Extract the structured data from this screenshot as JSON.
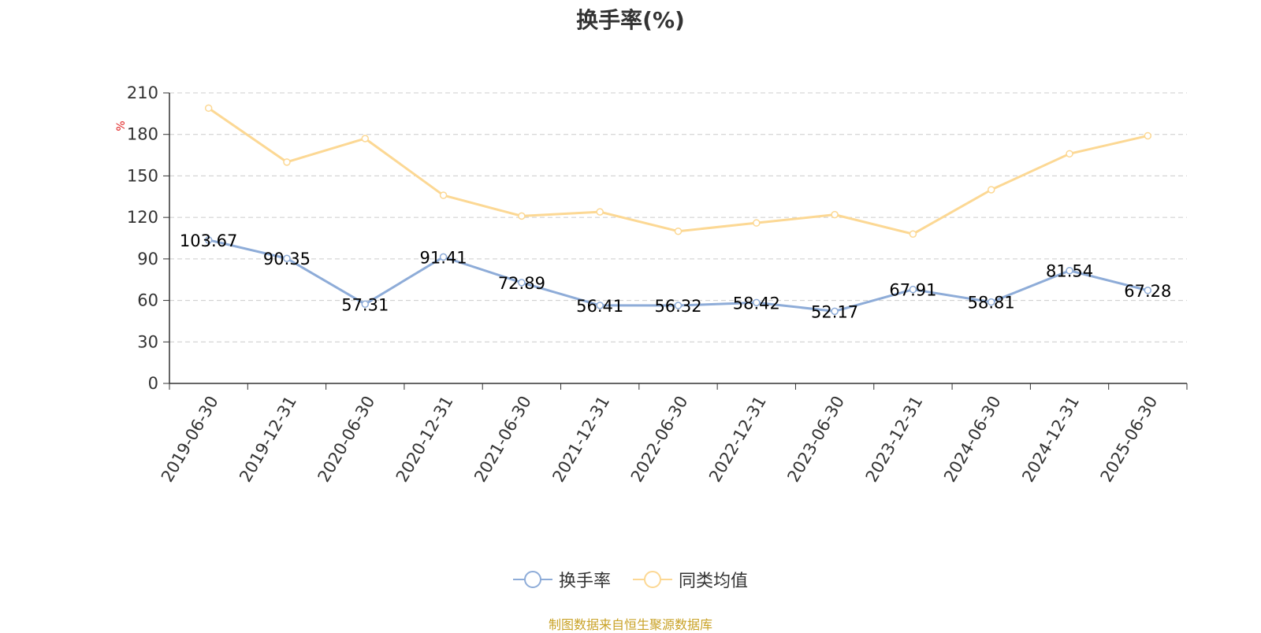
{
  "chart_data": {
    "type": "line",
    "title": "换手率(%)",
    "ylabel": "%",
    "ylim": [
      0,
      210
    ],
    "yticks": [
      0,
      30,
      60,
      90,
      120,
      150,
      180,
      210
    ],
    "grid": true,
    "legend_position": "bottom",
    "categories": [
      "2019-06-30",
      "2019-12-31",
      "2020-06-30",
      "2020-12-31",
      "2021-06-30",
      "2021-12-31",
      "2022-06-30",
      "2022-12-31",
      "2023-06-30",
      "2023-12-31",
      "2024-06-30",
      "2024-12-31",
      "2025-06-30"
    ],
    "series": [
      {
        "name": "换手率",
        "color": "#8eacd8",
        "values": [
          103.67,
          90.35,
          57.31,
          91.41,
          72.89,
          56.41,
          56.32,
          58.42,
          52.17,
          67.91,
          58.81,
          81.54,
          67.28
        ],
        "labels": [
          "103.67",
          "90.35",
          "57.31",
          "91.41",
          "72.89",
          "56.41",
          "56.32",
          "58.42",
          "52.17",
          "67.91",
          "58.81",
          "81.54",
          "67.28"
        ]
      },
      {
        "name": "同类均值",
        "color": "#fcd894",
        "values": [
          199,
          160,
          177,
          136,
          121,
          124,
          110,
          116,
          122,
          108,
          140,
          166,
          179
        ]
      }
    ]
  },
  "footer": {
    "source": "制图数据来自恒生聚源数据库",
    "color": "#c9a227"
  },
  "styles": {
    "ylabel_color": "#e02020",
    "axis_color": "#333333",
    "grid_color": "#cccccc"
  }
}
